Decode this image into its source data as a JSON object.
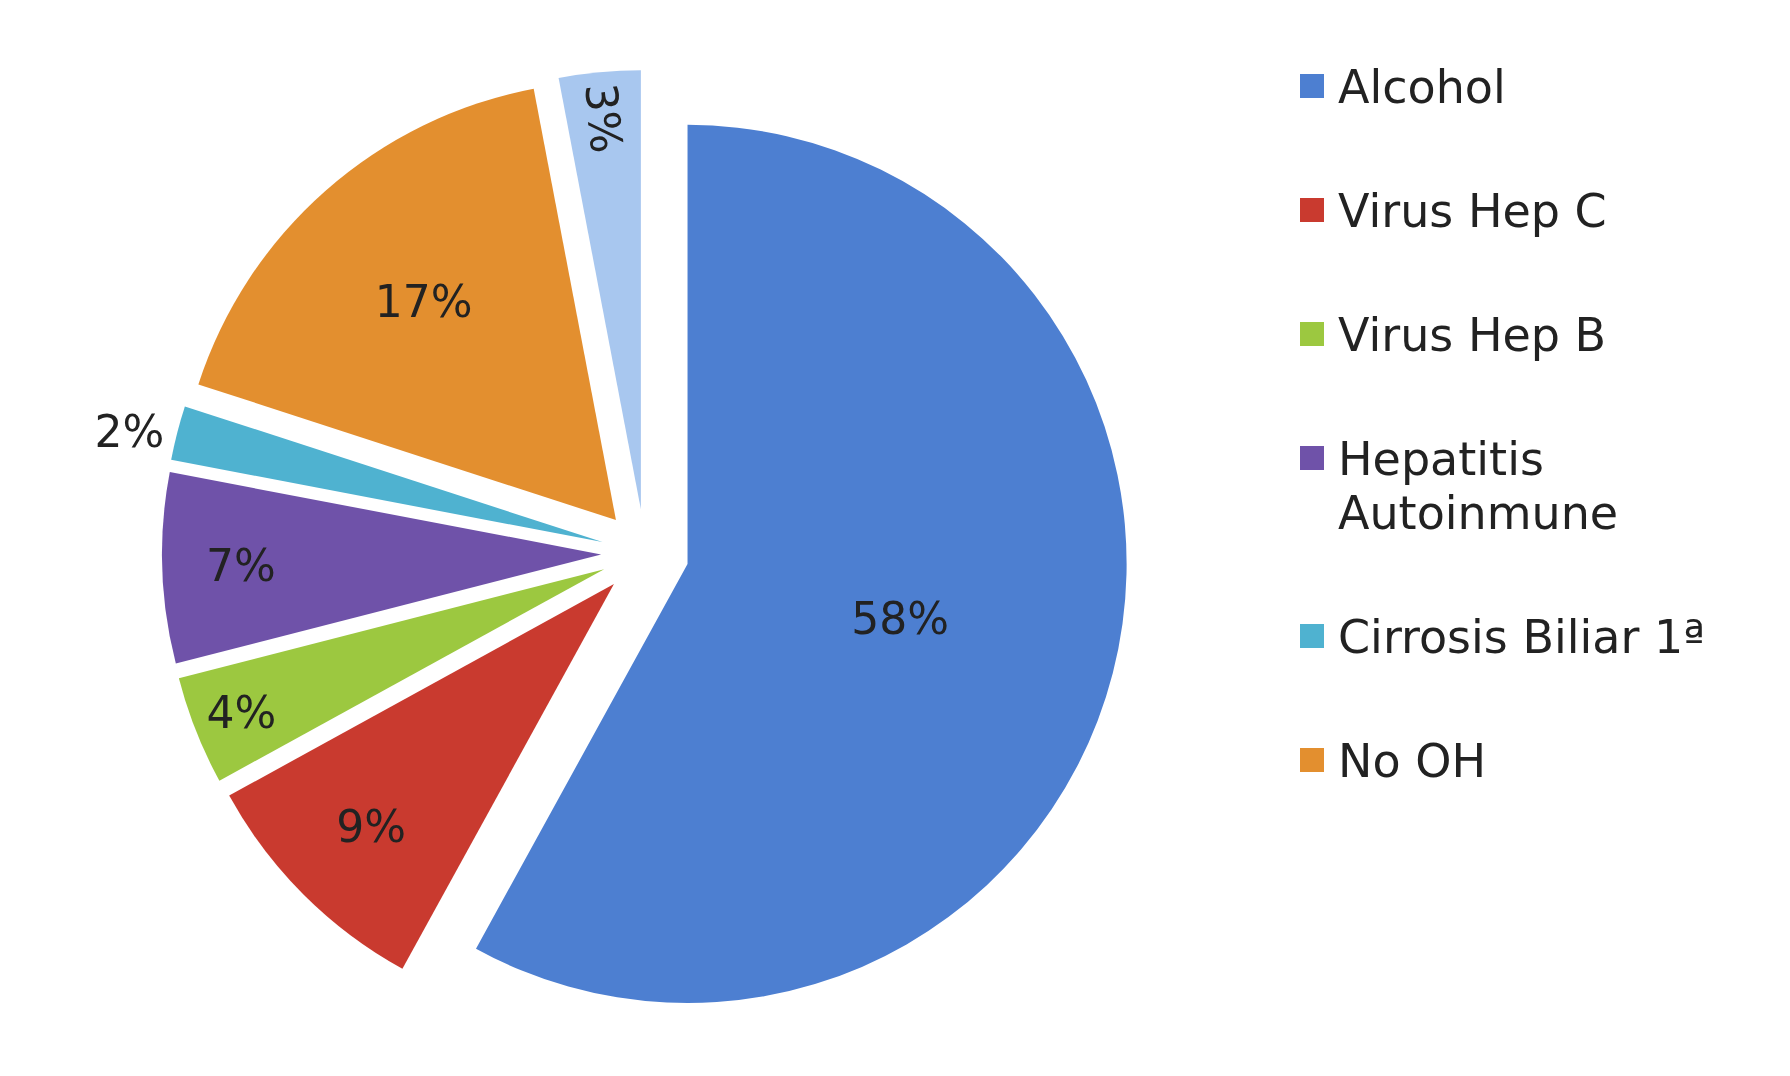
{
  "chart_data": {
    "type": "pie",
    "categories": [
      "Alcohol",
      "Virus Hep C",
      "Virus Hep B",
      "Hepatitis Autoinmune",
      "Cirrosis Biliar 1ª",
      "No OH",
      null
    ],
    "values": [
      58,
      9,
      4,
      7,
      2,
      17,
      3
    ],
    "value_labels": [
      "58%",
      "9%",
      "4%",
      "7%",
      "2%",
      "17%",
      "3%"
    ],
    "colors": [
      "#4d7fd1",
      "#c93a2f",
      "#9cc840",
      "#6f52a9",
      "#4fb2d0",
      "#e38f2f",
      "#a8c7ef"
    ],
    "legend": "right"
  }
}
